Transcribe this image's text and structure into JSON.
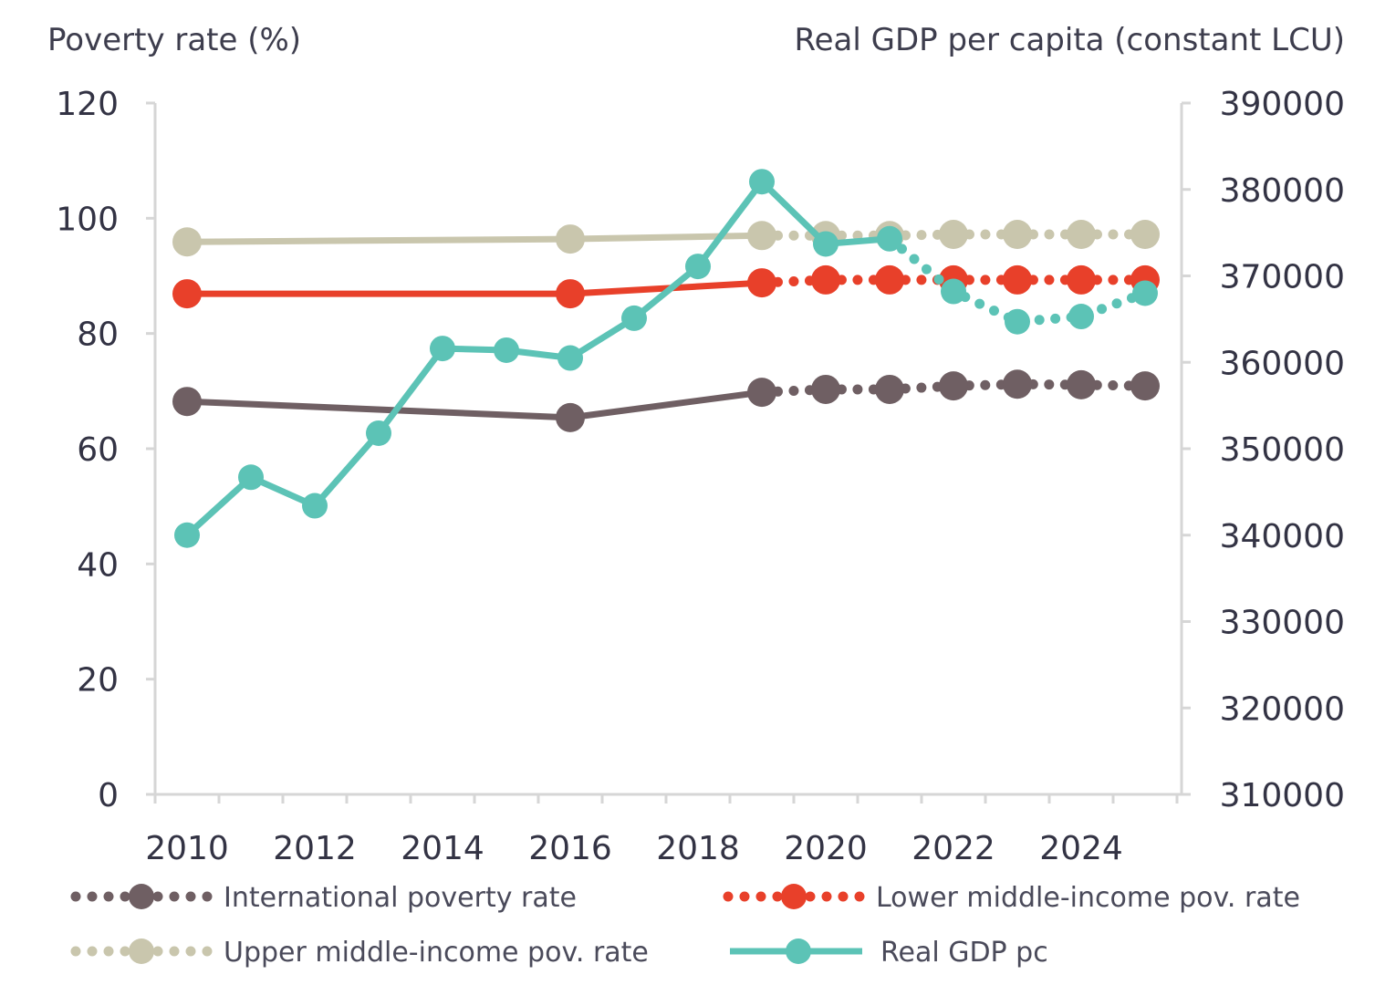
{
  "chart_data": {
    "type": "line",
    "title": "",
    "y_left": {
      "label": "Poverty rate (%)",
      "lim": [
        0,
        120
      ],
      "ticks": [
        "0",
        "20",
        "40",
        "60",
        "80",
        "100",
        "120"
      ]
    },
    "y_right": {
      "label": "Real GDP per capita (constant LCU)",
      "lim": [
        310000,
        390000
      ],
      "ticks": [
        "310000",
        "320000",
        "330000",
        "340000",
        "350000",
        "360000",
        "370000",
        "380000",
        "390000"
      ]
    },
    "x": [
      2010,
      2011,
      2012,
      2013,
      2014,
      2015,
      2016,
      2017,
      2018,
      2019,
      2020,
      2021,
      2022,
      2023,
      2024,
      2025
    ],
    "x_tick_labels": [
      "2010",
      "2012",
      "2014",
      "2016",
      "2018",
      "2020",
      "2022",
      "2024"
    ],
    "grid": false,
    "legend_position": "bottom",
    "series": [
      {
        "name": "International poverty rate",
        "axis": "left",
        "color": "#6f5f63",
        "values": [
          68.2,
          null,
          null,
          null,
          null,
          null,
          65.4,
          null,
          null,
          69.8,
          70.3,
          70.3,
          70.9,
          71.2,
          71.1,
          70.9
        ]
      },
      {
        "name": "Lower middle-income pov. rate",
        "axis": "left",
        "color": "#e8402a",
        "values": [
          86.9,
          null,
          null,
          null,
          null,
          null,
          86.9,
          null,
          null,
          88.8,
          89.3,
          89.3,
          89.3,
          89.3,
          89.3,
          89.3
        ]
      },
      {
        "name": "Upper middle-income pov. rate",
        "axis": "left",
        "color": "#c9c6ad",
        "values": [
          95.9,
          null,
          null,
          null,
          null,
          null,
          96.4,
          null,
          null,
          97.0,
          97.0,
          97.0,
          97.2,
          97.2,
          97.2,
          97.2
        ]
      },
      {
        "name": "Real GDP pc",
        "axis": "right",
        "color": "#5cc3b6",
        "values": [
          340000,
          346700,
          343400,
          351800,
          361600,
          361400,
          360500,
          365100,
          371100,
          380900,
          373700,
          374300,
          368200,
          364700,
          365300,
          368000
        ]
      }
    ]
  }
}
